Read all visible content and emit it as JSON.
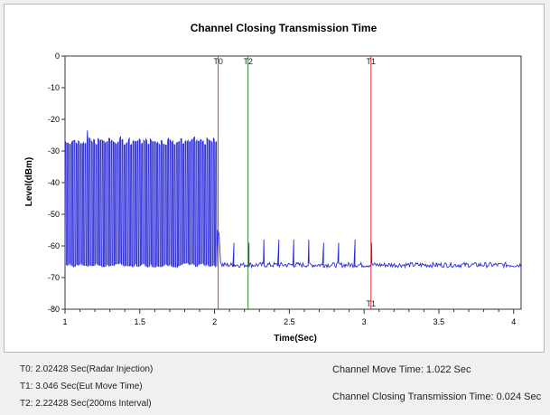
{
  "chart_data": {
    "type": "line",
    "title": "Channel Closing Transmission Time",
    "xlabel": "Time(Sec)",
    "ylabel": "Level(dBm)",
    "xlim": [
      1,
      4.05
    ],
    "ylim": [
      -80,
      0
    ],
    "x_ticks": [
      1,
      1.5,
      2,
      2.5,
      3,
      3.5,
      4
    ],
    "x_tick_labels": [
      "1",
      "1.5",
      "2",
      "2.5",
      "3",
      "3.5",
      "4"
    ],
    "y_ticks": [
      0,
      -10,
      -20,
      -30,
      -40,
      -50,
      -60,
      -70,
      -80
    ],
    "y_tick_labels": [
      "0",
      "-10",
      "-20",
      "-30",
      "-40",
      "-50",
      "-60",
      "-70",
      "-80"
    ],
    "grid": false,
    "series": [
      {
        "color": "#2b2bd6",
        "segments": [
          {
            "type": "burst",
            "x_start": 1.0,
            "x_end": 2.02,
            "high": -27,
            "low": -66,
            "bursts": 70,
            "highest_peak": -23.5,
            "highest_peak_x": 1.15
          },
          {
            "type": "noise_floor",
            "x_start": 2.02,
            "x_end": 4.05,
            "level": -66
          },
          {
            "type": "spike",
            "x": 2.02,
            "y": -55
          }
        ],
        "spikes": [
          {
            "x": 2.13,
            "y": -59
          },
          {
            "x": 2.23,
            "y": -59
          },
          {
            "x": 2.33,
            "y": -58
          },
          {
            "x": 2.43,
            "y": -58
          },
          {
            "x": 2.53,
            "y": -58
          },
          {
            "x": 2.63,
            "y": -58
          },
          {
            "x": 2.73,
            "y": -59
          },
          {
            "x": 2.83,
            "y": -59
          },
          {
            "x": 2.94,
            "y": -58
          },
          {
            "x": 3.05,
            "y": -59
          }
        ]
      }
    ],
    "markers": [
      {
        "label": "T0",
        "x": 2.02428,
        "color": "#e03030",
        "label_position": "top"
      },
      {
        "label": "T2",
        "x": 2.22428,
        "color": "#2e8b2e",
        "label_position": "top"
      },
      {
        "label": "T1",
        "x": 3.046,
        "color": "#e03030",
        "label_position": "top-and-bottom"
      }
    ]
  },
  "info": {
    "t0": "T0: 2.02428 Sec(Radar Injection)",
    "t1": "T1: 3.046 Sec(Eut Move Time)",
    "t2": "T2: 2.22428 Sec(200ms Interval)",
    "move_time": "Channel Move Time: 1.022 Sec",
    "closing_time": "Channel Closing Transmission Time: 0.024 Sec"
  }
}
